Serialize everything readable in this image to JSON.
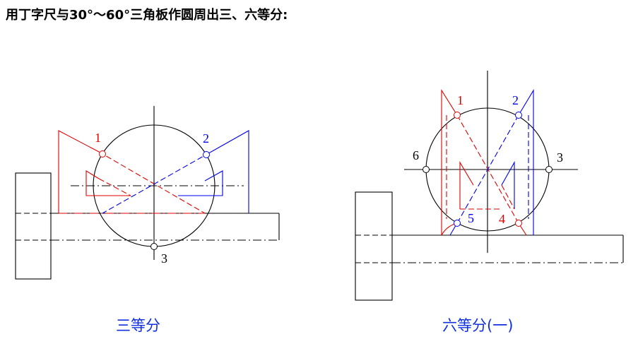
{
  "title": "用丁字尺与30°～60°三角板作圆周出三、六等分:",
  "figures": [
    {
      "caption": "三等分",
      "points": [
        "1",
        "2",
        "3"
      ]
    },
    {
      "caption": "六等分(一)",
      "points": [
        "1",
        "2",
        "3",
        "4",
        "5",
        "6"
      ]
    }
  ]
}
